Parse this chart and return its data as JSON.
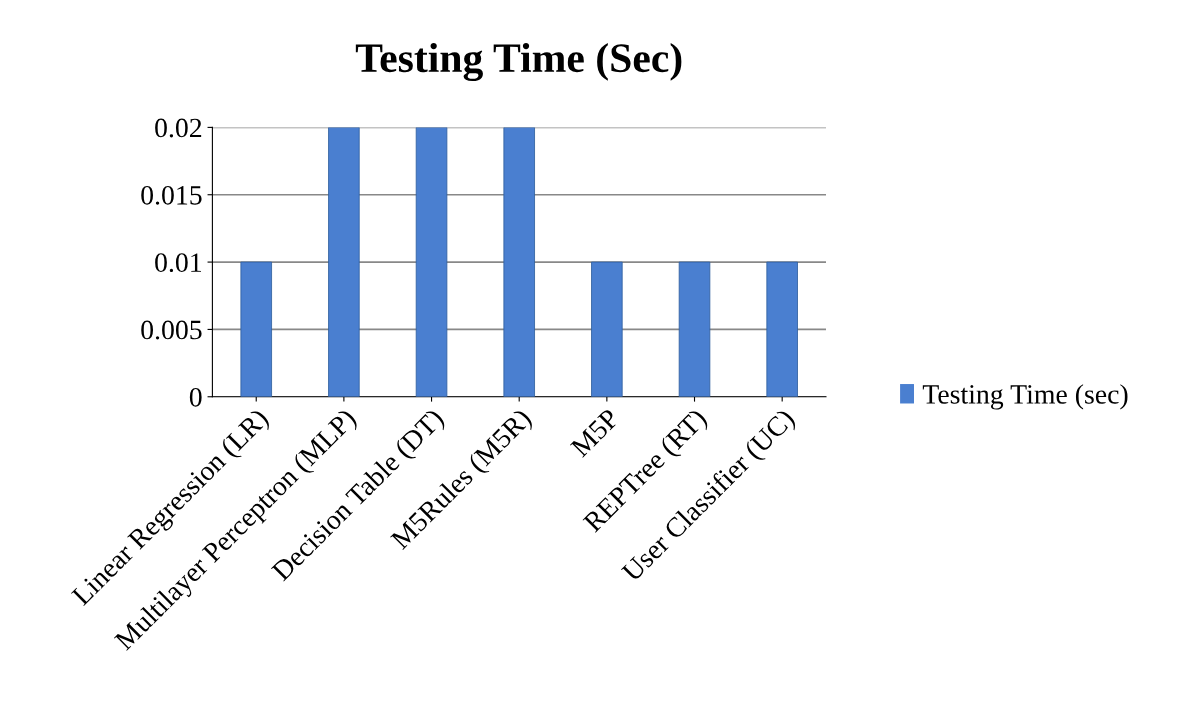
{
  "chart_data": {
    "type": "bar",
    "title": "Testing Time (Sec)",
    "categories": [
      "Linear Regression (LR)",
      "Multilayer Perceptron (MLP)",
      "Decision Table (DT)",
      "M5Rules (M5R)",
      "M5P",
      "REPTree (RT)",
      "User Classifier (UC)"
    ],
    "series": [
      {
        "name": "Testing Time (sec)",
        "color": "#4a7fd0",
        "values": [
          0.01,
          0.02,
          0.02,
          0.02,
          0.01,
          0.01,
          0.01
        ]
      }
    ],
    "ylim": [
      0,
      0.02
    ],
    "yticks": [
      0,
      0.005,
      0.01,
      0.015,
      0.02
    ],
    "grid": "y",
    "legend": "right"
  }
}
